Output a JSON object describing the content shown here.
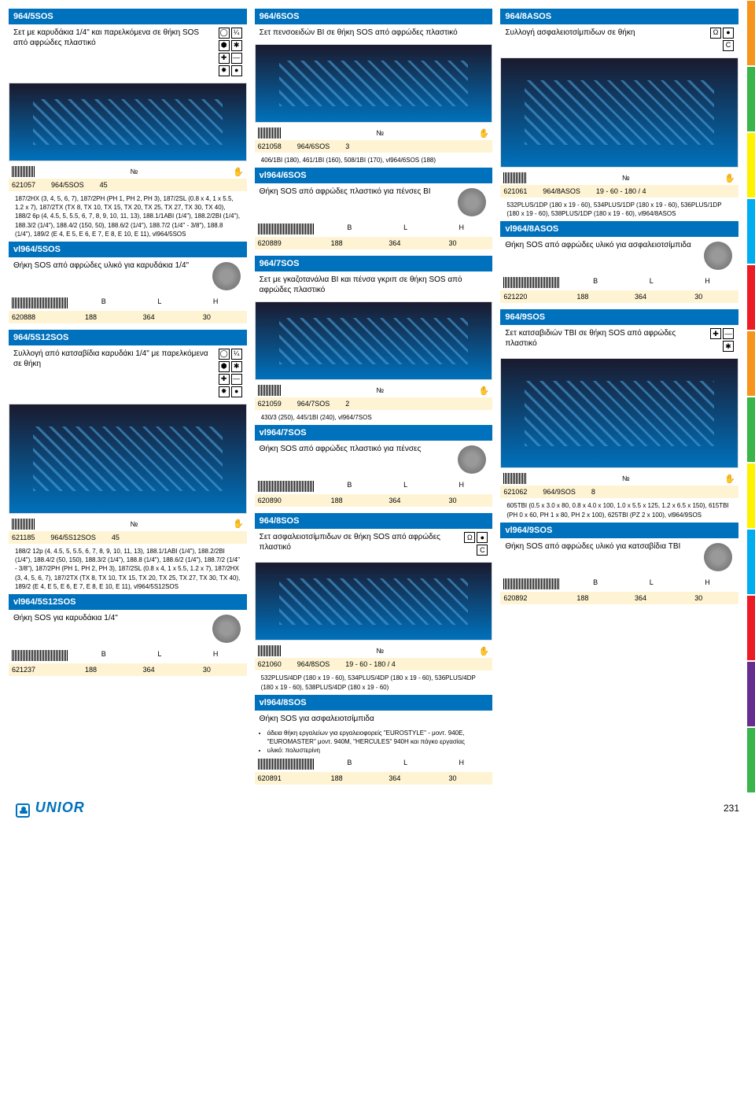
{
  "page_number": "231",
  "brand": "UNIOR",
  "colors": {
    "header_bg": "#0071bc",
    "header_text": "#ffffff",
    "yellow_row": "#fef4d4",
    "side_tabs": [
      "#f7941d",
      "#39b54a",
      "#fff200",
      "#00aeef",
      "#ed1c24",
      "#f7941d",
      "#39b54a",
      "#fff200",
      "#00aeef",
      "#ed1c24",
      "#662d91",
      "#39b54a"
    ]
  },
  "col1": {
    "p1": {
      "sku": "964/5SOS",
      "desc": "Σετ με καρυδάκια 1/4\" και παρελκόμενα σε θήκη SOS από αφρώδες πλαστικό",
      "row_code": "621057",
      "row_sku": "964/5SOS",
      "row_qty": "45",
      "spec": "187/2HX (3, 4, 5, 6, 7), 187/2PH (PH 1, PH 2, PH 3), 187/2SL (0.8 x 4, 1 x 5.5, 1.2 x 7), 187/2TX (TX 8, TX 10, TX 15, TX 20, TX 25, TX 27, TX 30, TX 40), 188/2 6p (4, 4.5, 5, 5.5, 6, 7, 8, 9, 10, 11, 13), 188.1/1ABI (1/4\"), 188.2/2BI (1/4\"), 188.3/2 (1/4\"), 188.4/2 (150, 50), 188.6/2 (1/4\"), 188.7/2 (1/4\" - 3/8\"), 188.8 (1/4\"), 189/2 (E 4, E 5, E 6, E 7, E 8, E 10, E 11), vl964/5SOS",
      "vl_sku": "vl964/5SOS",
      "vl_desc": "Θήκη SOS από αφρώδες υλικό για καρυδάκια 1/4\"",
      "dim_code": "620888",
      "dim_b": "188",
      "dim_l": "364",
      "dim_h": "30"
    },
    "p2": {
      "sku": "964/5S12SOS",
      "desc": "Συλλογή από κατσαβίδια καρυδάκι 1/4\" με παρελκόμενα σε θήκη",
      "row_code": "621185",
      "row_sku": "964/5S12SOS",
      "row_qty": "45",
      "spec": "188/2 12p (4, 4.5, 5, 5.5, 6, 7, 8, 9, 10, 11, 13), 188.1/1ABI (1/4\"), 188.2/2BI (1/4\"), 188.4/2 (50, 150), 188.3/2 (1/4\"), 188.8 (1/4\"), 188.6/2 (1/4\"), 188.7/2 (1/4\" - 3/8\"), 187/2PH (PH 1, PH 2, PH 3), 187/2SL (0.8 x 4, 1 x 5.5, 1.2 x 7), 187/2HX (3, 4, 5, 6, 7), 187/2TX (TX 8, TX 10, TX 15, TX 20, TX 25, TX 27, TX 30, TX 40), 189/2 (E 4, E 5, E 6, E 7, E 8, E 10, E 11), vl964/5S12SOS",
      "vl_sku": "vl964/5S12SOS",
      "vl_desc": "Θήκη SOS για καρυδάκια 1/4\"",
      "dim_code": "621237",
      "dim_b": "188",
      "dim_l": "364",
      "dim_h": "30"
    }
  },
  "col2": {
    "p1": {
      "sku": "964/6SOS",
      "desc": "Σετ πενσοειδών BI σε θήκη SOS από αφρώδες πλαστικό",
      "row_code": "621058",
      "row_sku": "964/6SOS",
      "row_qty": "3",
      "spec": "406/1BI (180), 461/1BI (160), 508/1BI (170), vl964/6SOS (188)",
      "vl_sku": "vl964/6SOS",
      "vl_desc": "Θήκη SOS από αφρώδες πλαστικό για πένσες BI",
      "dim_code": "620889",
      "dim_b": "188",
      "dim_l": "364",
      "dim_h": "30"
    },
    "p2": {
      "sku": "964/7SOS",
      "desc": "Σετ με γκαζοτανάλια BI και πένσα γκριπ σε θήκη SOS από αφρώδες πλαστικό",
      "row_code": "621059",
      "row_sku": "964/7SOS",
      "row_qty": "2",
      "spec": "430/3 (250), 445/1BI (240), vl964/7SOS",
      "vl_sku": "vl964/7SOS",
      "vl_desc": "Θήκη SOS από αφρώδες πλαστικό για πένσες",
      "dim_code": "620890",
      "dim_b": "188",
      "dim_l": "364",
      "dim_h": "30"
    },
    "p3": {
      "sku": "964/8SOS",
      "desc": "Σετ ασφαλειοτσίμπιδων σε θήκη SOS από αφρώδες πλαστικό",
      "row_code": "621060",
      "row_sku": "964/8SOS",
      "row_qty": "19 - 60 - 180 / 4",
      "spec": "532PLUS/4DP (180 x 19 - 60), 534PLUS/4DP (180 x 19 - 60), 536PLUS/4DP (180 x 19 - 60), 538PLUS/4DP (180 x 19 - 60)",
      "vl_sku": "vl964/8SOS",
      "vl_desc": "Θήκη SOS για ασφαλειοτσίμπιδα",
      "bullet1": "άδεια θήκη εργαλείων για εργαλειοφορείς \"EUROSTYLE\" - μοντ. 940E, \"EUROMASTER\" μοντ. 940M, \"HERCULES\" 940H και πάγκο εργασίας",
      "bullet2": "υλικό: πολυστερίνη",
      "dim_code": "620891",
      "dim_b": "188",
      "dim_l": "364",
      "dim_h": "30"
    }
  },
  "col3": {
    "p1": {
      "sku": "964/8ASOS",
      "desc": "Συλλογή ασφαλειοτσίμπιδων σε θήκη",
      "row_code": "621061",
      "row_sku": "964/8ASOS",
      "row_qty": "19 - 60 - 180 / 4",
      "spec": "532PLUS/1DP (180 x 19 - 60), 534PLUS/1DP (180 x 19 - 60), 536PLUS/1DP (180 x 19 - 60), 538PLUS/1DP (180 x 19 - 60), vl964/8ASOS",
      "vl_sku": "vl964/8ASOS",
      "vl_desc": "Θήκη SOS από αφρώδες υλικό για ασφαλειοτσίμπιδα",
      "dim_code": "621220",
      "dim_b": "188",
      "dim_l": "364",
      "dim_h": "30"
    },
    "p2": {
      "sku": "964/9SOS",
      "desc": "Σετ κατσαβιδιών TBI σε θήκη SOS από αφρώδες πλαστικό",
      "row_code": "621062",
      "row_sku": "964/9SOS",
      "row_qty": "8",
      "spec": "605TBI (0.5 x 3.0 x 80, 0.8 x 4.0 x 100, 1.0 x 5.5 x 125, 1.2 x 6.5 x 150), 615TBI (PH 0 x 60, PH 1 x 80, PH 2 x 100), 625TBI (PZ 2 x 100), vl964/9SOS",
      "vl_sku": "vl964/9SOS",
      "vl_desc": "Θήκη SOS από αφρώδες υλικό για  κατσαβίδια TBI",
      "dim_code": "620892",
      "dim_b": "188",
      "dim_l": "364",
      "dim_h": "30"
    }
  },
  "labels": {
    "no": "№",
    "b": "B",
    "l": "L",
    "h": "H"
  }
}
